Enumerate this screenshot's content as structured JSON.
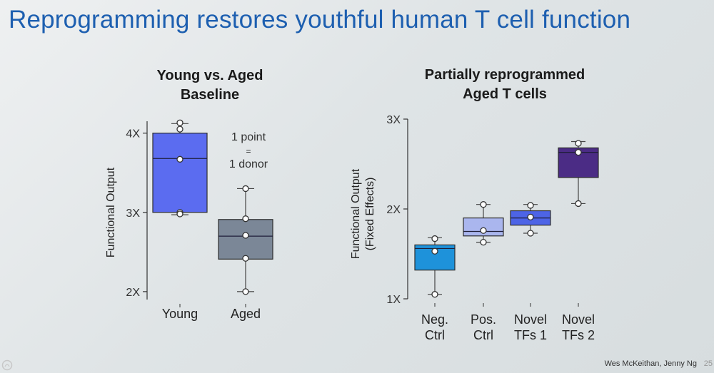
{
  "slide": {
    "title": "Reprogramming restores youthful human T cell function",
    "credit": "Wes McKeithan, Jenny Ng",
    "page": "25"
  },
  "chart_data": [
    {
      "type": "box",
      "title": [
        "Young vs. Aged",
        "Baseline"
      ],
      "ylabel": [
        "Functional Output"
      ],
      "ylim": [
        1.9,
        4.15
      ],
      "yticks": [
        {
          "value": 2,
          "label": "2X"
        },
        {
          "value": 3,
          "label": "3X"
        },
        {
          "value": 4,
          "label": "4X"
        }
      ],
      "annotation": [
        "1 point",
        "=",
        "1 donor"
      ],
      "categories": [
        {
          "label": [
            "Young"
          ],
          "color": "#5b6cf0",
          "q1": 3.0,
          "median": 3.68,
          "q3": 4.0,
          "whisker_low": 2.97,
          "whisker_high": 4.12,
          "points": [
            4.13,
            4.05,
            3.67,
            3.0,
            2.98
          ]
        },
        {
          "label": [
            "Aged"
          ],
          "color": "#7b8797",
          "q1": 2.41,
          "median": 2.7,
          "q3": 2.91,
          "whisker_low": 2.0,
          "whisker_high": 3.3,
          "points": [
            3.3,
            2.92,
            2.71,
            2.42,
            2.0
          ]
        }
      ]
    },
    {
      "type": "box",
      "title": [
        "Partially reprogrammed",
        "Aged T cells"
      ],
      "ylabel": [
        "Functional  Output",
        "(Fixed Effects)"
      ],
      "ylim": [
        1,
        3
      ],
      "yticks": [
        {
          "value": 1,
          "label": "1X"
        },
        {
          "value": 2,
          "label": "2X"
        },
        {
          "value": 3,
          "label": "3X"
        }
      ],
      "categories": [
        {
          "label": [
            "Neg.",
            "Ctrl"
          ],
          "color": "#1e92da",
          "q1": 1.32,
          "median": 1.56,
          "q3": 1.6,
          "whisker_low": 1.05,
          "whisker_high": 1.68,
          "points": [
            1.67,
            1.53,
            1.05
          ]
        },
        {
          "label": [
            "Pos.",
            "Ctrl"
          ],
          "color": "#aab6ee",
          "q1": 1.7,
          "median": 1.75,
          "q3": 1.9,
          "whisker_low": 1.63,
          "whisker_high": 2.05,
          "points": [
            2.05,
            1.76,
            1.63
          ]
        },
        {
          "label": [
            "Novel",
            "TFs 1"
          ],
          "color": "#4d64e6",
          "q1": 1.82,
          "median": 1.9,
          "q3": 1.98,
          "whisker_low": 1.73,
          "whisker_high": 2.05,
          "points": [
            2.04,
            1.91,
            1.73
          ]
        },
        {
          "label": [
            "Novel",
            "TFs 2"
          ],
          "color": "#4b2c85",
          "q1": 2.35,
          "median": 2.63,
          "q3": 2.68,
          "whisker_low": 2.06,
          "whisker_high": 2.75,
          "points": [
            2.73,
            2.63,
            2.06
          ]
        }
      ]
    }
  ]
}
